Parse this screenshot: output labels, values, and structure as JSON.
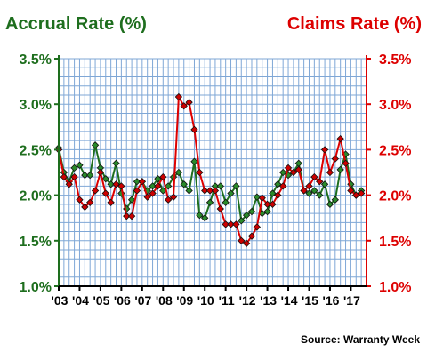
{
  "chart_data": {
    "type": "line",
    "left_title": "Accrual Rate (%)",
    "right_title": "Claims Rate (%)",
    "source": "Source: Warranty Week",
    "colors": {
      "accrual": "#1e6e1e",
      "accrual_marker": "#2a8a2a",
      "claims": "#dd0000",
      "claims_marker": "#cc0000",
      "grid": "#7fa7d6",
      "axis": "#000000"
    },
    "grid": true,
    "ylim": [
      1.0,
      3.5
    ],
    "y_ticks": [
      1.0,
      1.5,
      2.0,
      2.5,
      3.0,
      3.5
    ],
    "y_tick_labels": [
      "1.0%",
      "1.5%",
      "2.0%",
      "2.5%",
      "3.0%",
      "3.5%"
    ],
    "x_range": [
      2003.0,
      2017.75
    ],
    "x_ticks": [
      2003,
      2004,
      2005,
      2006,
      2007,
      2008,
      2009,
      2010,
      2011,
      2012,
      2013,
      2014,
      2015,
      2016,
      2017
    ],
    "x_tick_labels": [
      "'03",
      "'04",
      "'05",
      "'06",
      "'07",
      "'08",
      "'09",
      "'10",
      "'11",
      "'12",
      "'13",
      "'14",
      "'15",
      "'16",
      "'17"
    ],
    "series": [
      {
        "key": "accrual",
        "axis": "left",
        "x": [
          2003.0,
          2003.25,
          2003.5,
          2003.75,
          2004.0,
          2004.25,
          2004.5,
          2004.75,
          2005.0,
          2005.25,
          2005.5,
          2005.75,
          2006.0,
          2006.25,
          2006.5,
          2006.75,
          2007.0,
          2007.25,
          2007.5,
          2007.75,
          2008.0,
          2008.25,
          2008.5,
          2008.75,
          2009.0,
          2009.25,
          2009.5,
          2009.75,
          2010.0,
          2010.25,
          2010.5,
          2010.75,
          2011.0,
          2011.25,
          2011.5,
          2011.75,
          2012.0,
          2012.25,
          2012.5,
          2012.75,
          2013.0,
          2013.25,
          2013.5,
          2013.75,
          2014.0,
          2014.25,
          2014.5,
          2014.75,
          2015.0,
          2015.25,
          2015.5,
          2015.75,
          2016.0,
          2016.25,
          2016.5,
          2016.75,
          2017.0,
          2017.25,
          2017.5
        ],
        "values": [
          2.52,
          2.25,
          2.15,
          2.3,
          2.33,
          2.22,
          2.22,
          2.55,
          2.3,
          2.18,
          2.12,
          2.35,
          2.02,
          1.85,
          1.95,
          2.15,
          2.15,
          2.05,
          2.1,
          2.18,
          2.05,
          2.1,
          2.2,
          2.25,
          2.12,
          2.05,
          2.37,
          1.78,
          1.75,
          1.92,
          2.1,
          2.1,
          1.92,
          2.02,
          2.1,
          1.72,
          1.78,
          1.82,
          1.98,
          1.8,
          1.82,
          2.02,
          2.12,
          2.25,
          2.22,
          2.25,
          2.35,
          2.05,
          2.02,
          2.05,
          2.0,
          2.12,
          1.9,
          1.95,
          2.28,
          2.45,
          2.12,
          2.0,
          2.05
        ]
      },
      {
        "key": "claims",
        "axis": "right",
        "x": [
          2003.0,
          2003.25,
          2003.5,
          2003.75,
          2004.0,
          2004.25,
          2004.5,
          2004.75,
          2005.0,
          2005.25,
          2005.5,
          2005.75,
          2006.0,
          2006.25,
          2006.5,
          2006.75,
          2007.0,
          2007.25,
          2007.5,
          2007.75,
          2008.0,
          2008.25,
          2008.5,
          2008.75,
          2009.0,
          2009.25,
          2009.5,
          2009.75,
          2010.0,
          2010.25,
          2010.5,
          2010.75,
          2011.0,
          2011.25,
          2011.5,
          2011.75,
          2012.0,
          2012.25,
          2012.5,
          2012.75,
          2013.0,
          2013.25,
          2013.5,
          2013.75,
          2014.0,
          2014.25,
          2014.5,
          2014.75,
          2015.0,
          2015.25,
          2015.5,
          2015.75,
          2016.0,
          2016.25,
          2016.5,
          2016.75,
          2017.0,
          2017.25,
          2017.5
        ],
        "values": [
          2.5,
          2.2,
          2.12,
          2.2,
          1.95,
          1.87,
          1.92,
          2.05,
          2.25,
          2.02,
          1.92,
          2.12,
          2.1,
          1.77,
          1.77,
          2.05,
          2.15,
          1.98,
          2.02,
          2.1,
          2.2,
          1.95,
          1.98,
          3.08,
          2.98,
          3.02,
          2.72,
          2.25,
          2.05,
          2.05,
          2.05,
          1.85,
          1.68,
          1.68,
          1.68,
          1.5,
          1.47,
          1.55,
          1.65,
          1.97,
          1.9,
          1.9,
          2.0,
          2.1,
          2.3,
          2.25,
          2.28,
          2.05,
          2.1,
          2.2,
          2.15,
          2.5,
          2.25,
          2.4,
          2.62,
          2.35,
          2.05,
          2.0,
          2.02
        ]
      }
    ]
  }
}
